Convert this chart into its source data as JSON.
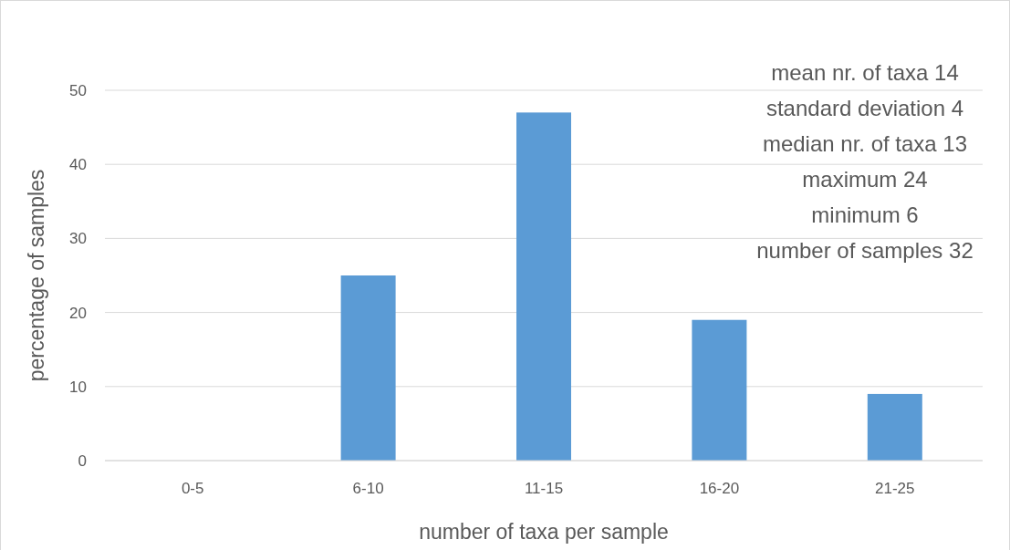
{
  "chart_data": {
    "type": "bar",
    "xlabel": "number of taxa per sample",
    "ylabel": "percentage of samples",
    "categories": [
      "0-5",
      "6-10",
      "11-15",
      "16-20",
      "21-25"
    ],
    "values": [
      0,
      25,
      47,
      19,
      9
    ],
    "color": "#5b9bd5",
    "ylim": [
      0,
      50
    ],
    "yticks": [
      0,
      10,
      20,
      30,
      40,
      50
    ],
    "grid": "y",
    "annotations": [
      "mean nr. of taxa 14",
      "standard deviation 4",
      "median nr. of taxa 13",
      "maximum 24",
      "minimum 6",
      "number of samples 32"
    ]
  }
}
